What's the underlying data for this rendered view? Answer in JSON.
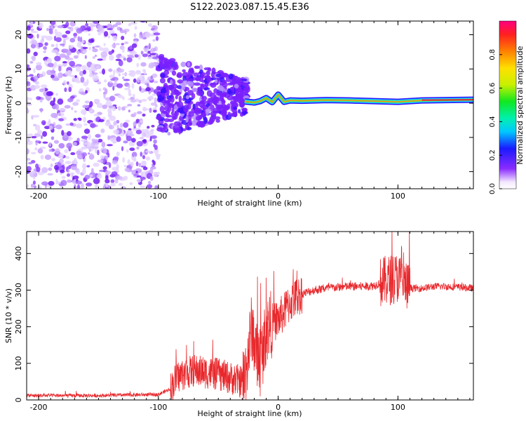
{
  "title": "S122.2023.087.15.45.E36",
  "colors": {
    "snr_line": "#e8282c",
    "axis": "#000000",
    "spectrogram_noise": "#7a2cff",
    "spectrogram_ridge": "#e63a3a",
    "spectrogram_band": "#20c8ff"
  },
  "chart_data": [
    {
      "type": "heatmap",
      "xlabel": "Height of straight line (km)",
      "ylabel": "Frequency (Hz)",
      "xlim": [
        -210,
        163
      ],
      "ylim": [
        -25,
        24
      ],
      "x_ticks": [
        -200,
        -100,
        0,
        100
      ],
      "y_ticks": [
        -20,
        -10,
        0,
        10,
        20
      ],
      "colorbar": {
        "label": "Normalized spectral amplitude",
        "range": [
          0,
          1
        ],
        "ticks": [
          0.0,
          0.2,
          0.4,
          0.6,
          0.8
        ],
        "tick_labels": [
          "0.0",
          "0.2",
          "0.4",
          "0.6",
          "0.8"
        ],
        "colormap": "rainbow",
        "position": "right"
      },
      "ridge": {
        "x": [
          -28,
          -20,
          -15,
          -10,
          -5,
          0,
          5,
          10,
          20,
          40,
          60,
          80,
          100,
          120,
          140,
          163
        ],
        "y": [
          0.5,
          0.2,
          0.6,
          1.5,
          0.3,
          2.5,
          0.4,
          0.8,
          0.7,
          0.9,
          0.8,
          0.6,
          0.4,
          0.8,
          0.9,
          1.0
        ]
      },
      "regions": [
        {
          "name": "scattered noise",
          "x_range": [
            -210,
            -100
          ],
          "y_range": [
            -25,
            24
          ]
        },
        {
          "name": "broadband scatter",
          "x_range": [
            -100,
            -25
          ],
          "y_range": [
            -12,
            12
          ]
        },
        {
          "name": "coherent narrow band",
          "x_range": [
            -25,
            163
          ],
          "y_range": [
            -1,
            3
          ]
        }
      ]
    },
    {
      "type": "line",
      "xlabel": "Height of straight line (km)",
      "ylabel": "SNR (10 * v/v)",
      "xlim": [
        -210,
        163
      ],
      "ylim": [
        0,
        460
      ],
      "x_ticks": [
        -200,
        -100,
        0,
        100
      ],
      "y_ticks": [
        0,
        100,
        200,
        300,
        400
      ],
      "series": [
        {
          "x": [
            -210,
            -150,
            -100,
            -90,
            -85,
            -80,
            -70,
            -60,
            -50,
            -40,
            -30,
            -28,
            -25,
            -22,
            -20,
            -18,
            -15,
            -12,
            -10,
            -8,
            -5,
            0,
            5,
            10,
            15,
            20,
            30,
            40,
            50,
            60,
            70,
            80,
            85,
            90,
            95,
            100,
            105,
            110,
            120,
            130,
            140,
            150,
            163
          ],
          "y": [
            12,
            12,
            15,
            30,
            60,
            70,
            80,
            75,
            70,
            60,
            50,
            60,
            130,
            200,
            160,
            120,
            100,
            150,
            190,
            200,
            210,
            220,
            240,
            265,
            280,
            290,
            300,
            305,
            308,
            310,
            310,
            312,
            320,
            325,
            330,
            335,
            315,
            305,
            305,
            310,
            310,
            308,
            305
          ]
        }
      ]
    }
  ]
}
